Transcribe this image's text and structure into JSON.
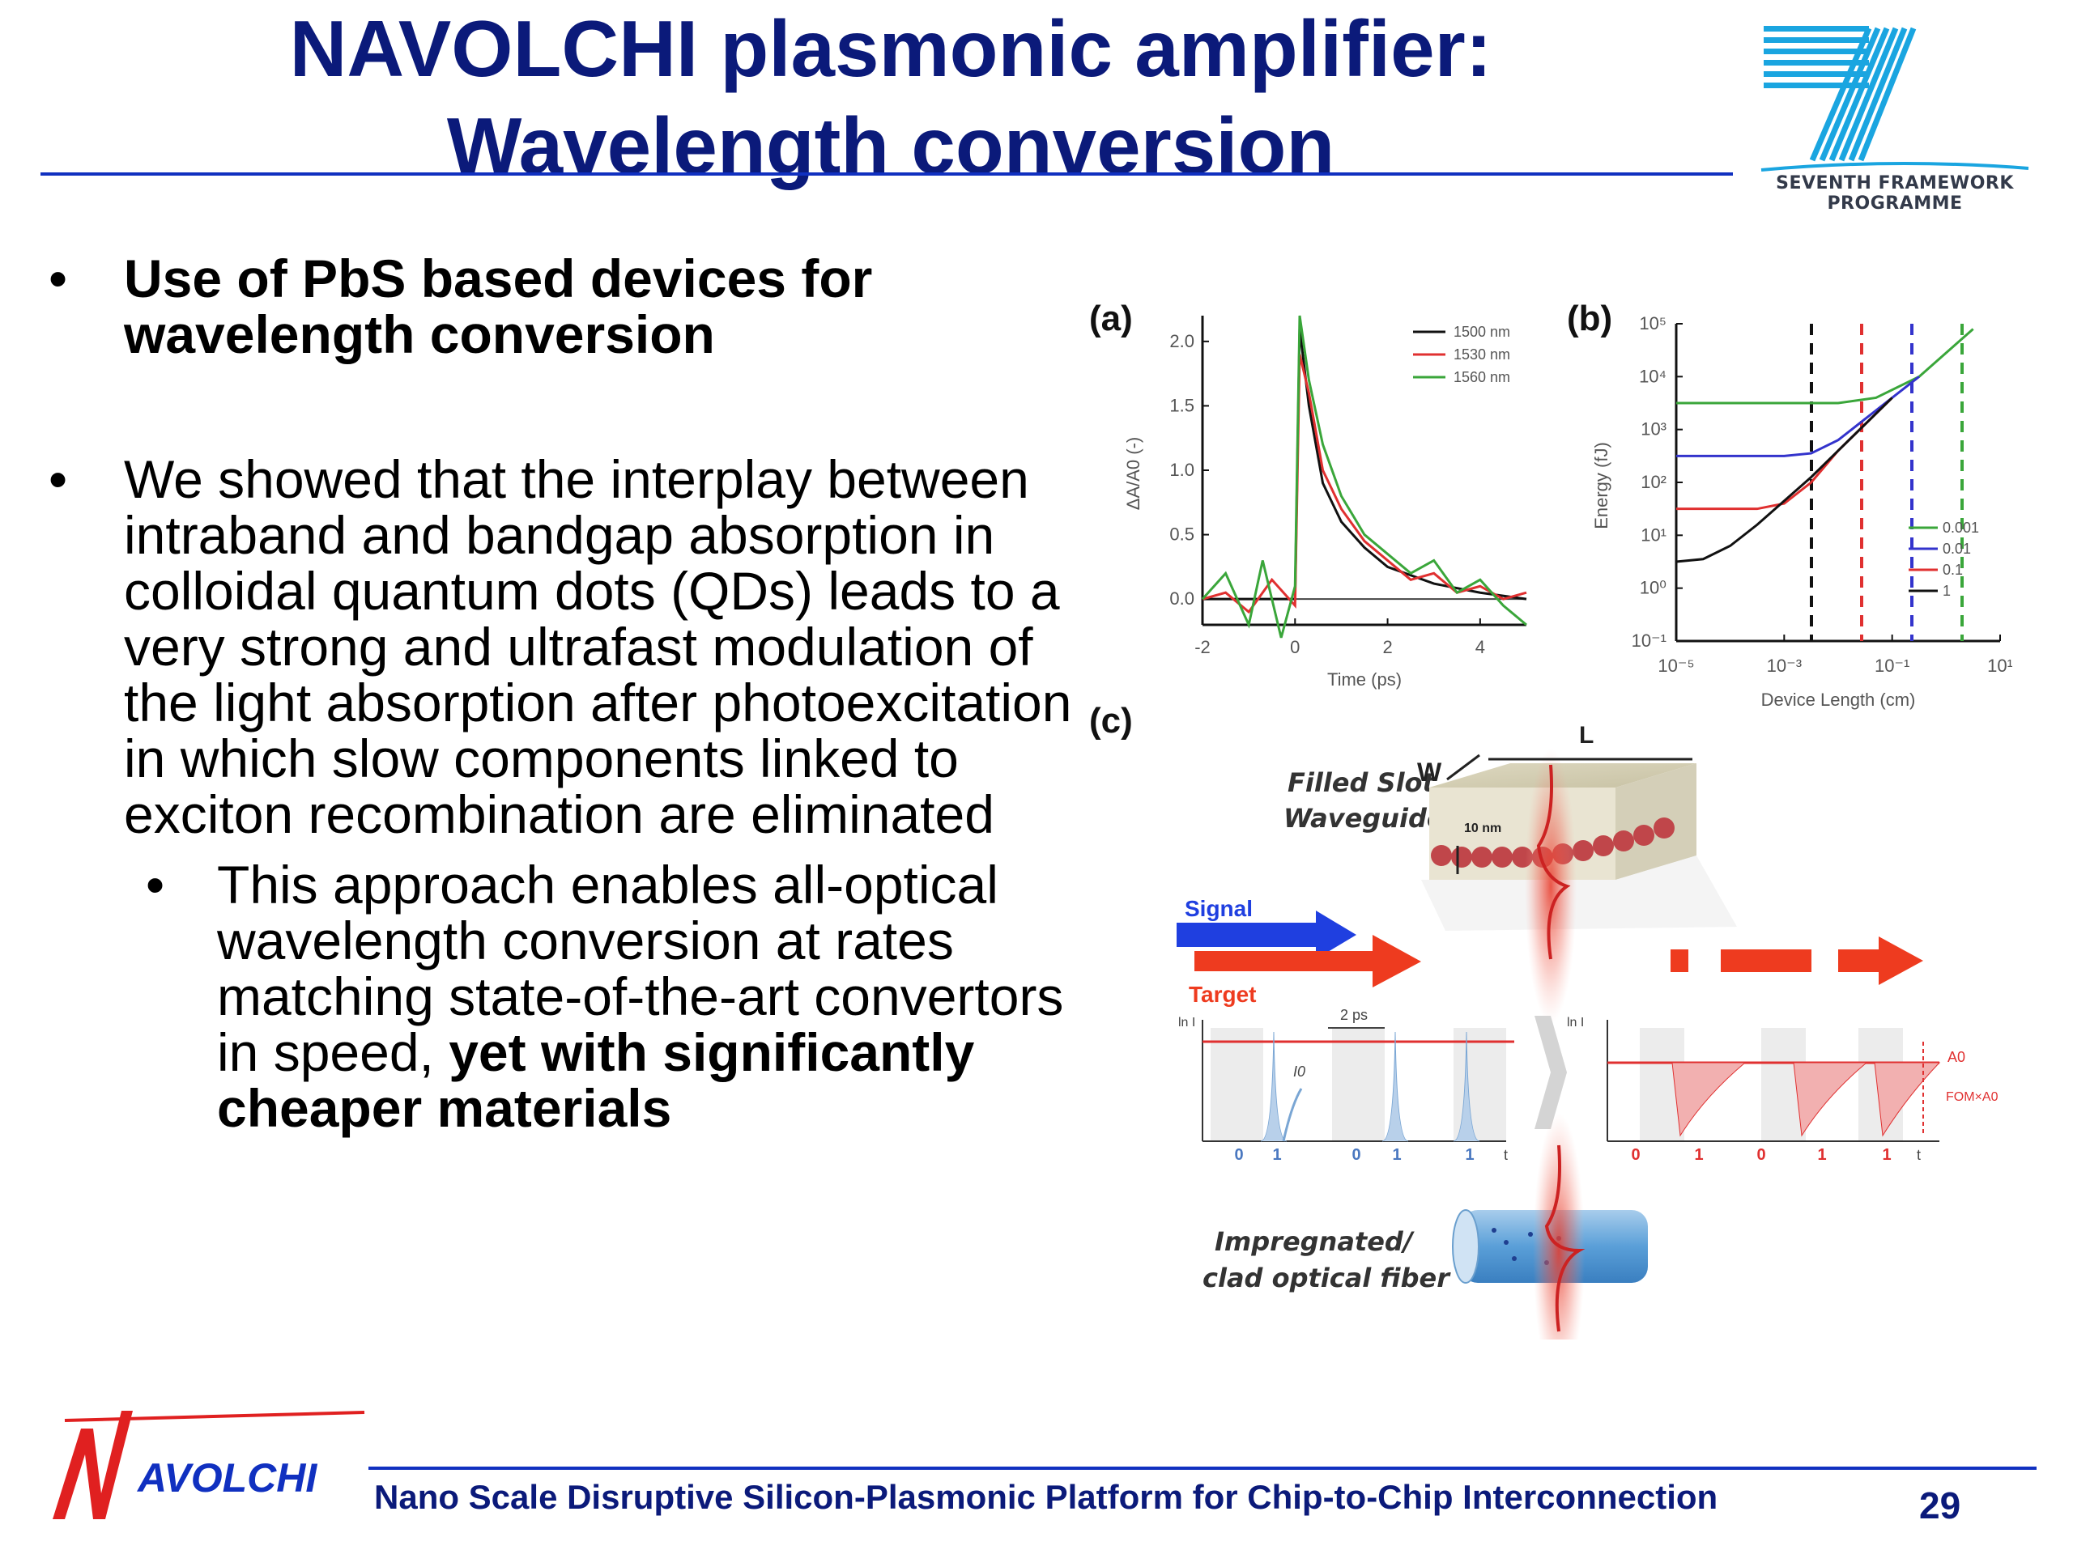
{
  "title": {
    "line1": "NAVOLCHI plasmonic amplifier:",
    "line2": "Wavelength conversion"
  },
  "fp7_logo": {
    "line1": "SEVENTH FRAMEWORK",
    "line2": "PROGRAMME"
  },
  "bullets": {
    "b1": "Use of PbS based devices for wavelength conversion",
    "b2": "We showed that the interplay between intraband and bandgap absorption in colloidal quantum dots (QDs) leads to a very strong and ultrafast modulation of the light absorption after photoexcitation in which slow components linked to exciton recombination are eliminated",
    "b3_regular": "This approach enables all-optical wavelength conversion at rates matching state-of-the-art convertors in speed, ",
    "b3_bold": "yet with significantly cheaper materials",
    "marker": "•"
  },
  "chart_data": [
    {
      "type": "line",
      "panel": "(a)",
      "xlabel": "Time (ps)",
      "ylabel": "ΔA/A0 (-)",
      "xlim": [
        -2,
        5
      ],
      "ylim": [
        -0.2,
        2.2
      ],
      "xticks": [
        "-2",
        "0",
        "2",
        "4"
      ],
      "yticks": [
        "0.0",
        "0.5",
        "1.0",
        "1.5",
        "2.0"
      ],
      "legend_position": "top-right",
      "series": [
        {
          "name": "1500 nm",
          "color": "#111111",
          "x": [
            -2,
            0,
            0.1,
            0.3,
            0.6,
            1,
            1.5,
            2,
            3,
            4,
            5
          ],
          "y": [
            0,
            0,
            2.1,
            1.5,
            0.9,
            0.6,
            0.4,
            0.25,
            0.12,
            0.05,
            0
          ]
        },
        {
          "name": "1530 nm",
          "color": "#e03030",
          "x": [
            -2,
            -1.5,
            -1,
            -0.5,
            0,
            0.1,
            0.3,
            0.6,
            1,
            1.5,
            2,
            2.5,
            3,
            3.5,
            4,
            4.5,
            5
          ],
          "y": [
            0,
            0.05,
            -0.1,
            0.15,
            -0.05,
            1.9,
            1.6,
            1.0,
            0.7,
            0.45,
            0.3,
            0.15,
            0.2,
            0.05,
            0.1,
            0.0,
            0.05
          ]
        },
        {
          "name": "1560 nm",
          "color": "#3aa63a",
          "x": [
            -2,
            -1.5,
            -1,
            -0.7,
            -0.3,
            0,
            0.1,
            0.3,
            0.6,
            1,
            1.5,
            2,
            2.5,
            3,
            3.5,
            4,
            4.5,
            5
          ],
          "y": [
            0,
            0.2,
            -0.2,
            0.3,
            -0.3,
            0.1,
            2.2,
            1.7,
            1.2,
            0.8,
            0.5,
            0.35,
            0.2,
            0.3,
            0.05,
            0.15,
            -0.05,
            -0.2
          ]
        }
      ]
    },
    {
      "type": "line",
      "panel": "(b)",
      "xlabel": "Device Length (cm)",
      "ylabel": "Energy (fJ)",
      "log_x": true,
      "log_y": true,
      "xlim_exp": [
        -5,
        1
      ],
      "ylim_exp": [
        -1,
        5
      ],
      "xticks": [
        "10⁻⁵",
        "10⁻³",
        "10⁻¹",
        "10¹"
      ],
      "yticks": [
        "10⁻¹",
        "10⁰",
        "10¹",
        "10²",
        "10³",
        "10⁴",
        "10⁵"
      ],
      "legend_position": "right",
      "series": [
        {
          "name": "0.001",
          "color": "#3aa63a",
          "x_exp": [
            -5,
            -3,
            -2,
            -1.3,
            -0.5,
            0.5
          ],
          "y_exp": [
            3.5,
            3.5,
            3.5,
            3.6,
            4.0,
            4.9
          ]
        },
        {
          "name": "0.01",
          "color": "#3333cc",
          "x_exp": [
            -5,
            -3,
            -2.5,
            -2,
            -1.5,
            -1,
            -0.5
          ],
          "y_exp": [
            2.5,
            2.5,
            2.55,
            2.8,
            3.2,
            3.6,
            4.0
          ]
        },
        {
          "name": "0.1",
          "color": "#e03030",
          "x_exp": [
            -5,
            -3.5,
            -3,
            -2.5,
            -2,
            -1.5,
            -1
          ],
          "y_exp": [
            1.5,
            1.5,
            1.6,
            2.0,
            2.6,
            3.1,
            3.6
          ]
        },
        {
          "name": "1",
          "color": "#111111",
          "x_exp": [
            -5,
            -4.5,
            -4,
            -3.5,
            -3,
            -2.5,
            -2,
            -1.5,
            -1
          ],
          "y_exp": [
            0.5,
            0.55,
            0.8,
            1.2,
            1.65,
            2.1,
            2.6,
            3.1,
            3.6
          ]
        }
      ]
    }
  ],
  "figure_c": {
    "panel": "(c)",
    "filled_slot_line1": "Filled Slot",
    "filled_slot_line2": "Waveguide",
    "dim_w": "W",
    "dim_l": "L",
    "dim_thickness": "10 nm",
    "signal_label": "Signal",
    "target_label": "Target",
    "pulse_spacing": "2 ps",
    "intensity_axis": "ln I",
    "pulse_label": "I0",
    "time_axis": "t",
    "bits_left": [
      "0",
      "1",
      "0",
      "1",
      "1"
    ],
    "bits_right": [
      "0",
      "1",
      "0",
      "1",
      "1"
    ],
    "amp_label": "A0",
    "fom_label": "FOM×A0",
    "fiber_line1": "Impregnated/",
    "fiber_line2": "clad optical fiber",
    "signal_color": "#1f3fe0",
    "target_color": "#ee3b1f"
  },
  "footer": {
    "text": "Nano Scale Disruptive Silicon-Plasmonic Platform for Chip-to-Chip Interconnection",
    "page": "29",
    "logo_text": "AVOLCHI",
    "logo_letter": "N"
  },
  "colors": {
    "title": "#0b1a7a",
    "rule": "#1030c0",
    "logo_blue": "#1aa5e0",
    "logo_red": "#e02020"
  }
}
